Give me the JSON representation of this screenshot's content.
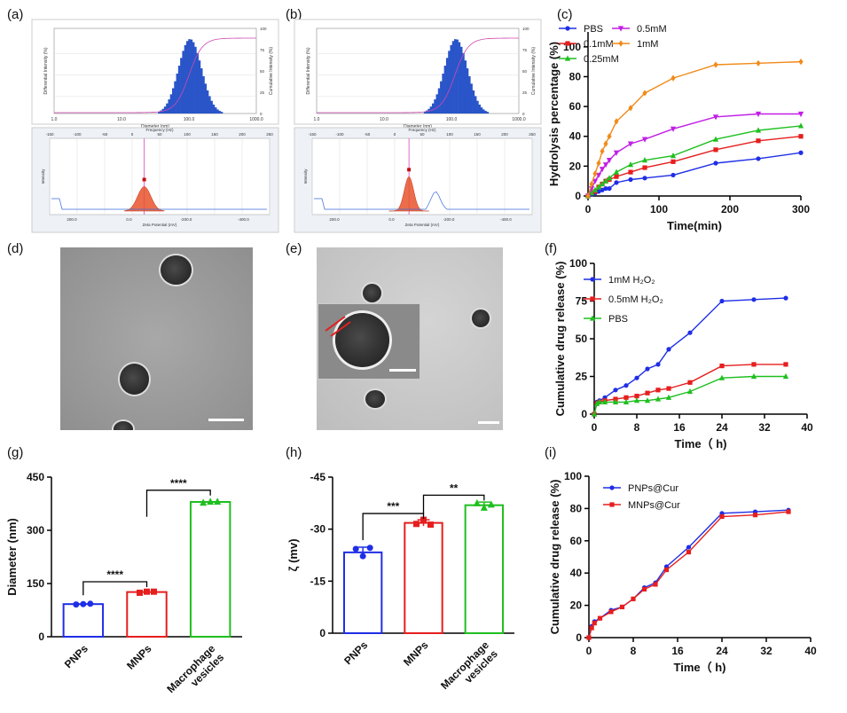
{
  "panel_labels": {
    "a": "(a)",
    "b": "(b)",
    "c": "(c)",
    "d": "(d)",
    "e": "(e)",
    "f": "(f)",
    "g": "(g)",
    "h": "(h)",
    "i": "(i)"
  },
  "dls": [
    {
      "x_title": "Diameter (nm)",
      "y_left": "Differential Intensity (%)",
      "y_right": "Cumulative Intensity (%)",
      "x_ticks": [
        "1.0",
        "10.0",
        "100.0",
        "1000.0"
      ],
      "right_ticks": [
        "100",
        "75",
        "50",
        "25",
        "0"
      ],
      "zeta_x_title": "Zeta Potential (mV)",
      "zeta_top_title": "Frequency (Hz)",
      "zeta_bottom_ticks": [
        "200.0",
        "0.0",
        "-200.0",
        "-400.0"
      ],
      "zeta_top_ticks": [
        "-150",
        "-100",
        "-50",
        "0",
        "50",
        "100",
        "150",
        "200",
        "250"
      ],
      "zeta_y_title": "Intensity"
    },
    {
      "x_title": "Diameter (nm)",
      "y_left": "Differential Intensity (%)",
      "y_right": "Cumulative Intensity (%)",
      "x_ticks": [
        "1.0",
        "10.0",
        "100.0",
        "1000.0"
      ],
      "right_ticks": [
        "100",
        "75",
        "50",
        "25",
        "0"
      ],
      "zeta_x_title": "Zeta Potential (mV)",
      "zeta_top_title": "Frequency (Hz)",
      "zeta_bottom_ticks": [
        "200.0",
        "0.0",
        "-200.0",
        "-400.0"
      ],
      "zeta_top_ticks": [
        "-150",
        "-100",
        "-50",
        "0",
        "50",
        "100",
        "150",
        "200",
        "250"
      ],
      "zeta_y_title": "Intensity"
    }
  ],
  "chart_data": [
    {
      "id": "c",
      "type": "line",
      "xlabel": "Time(min)",
      "ylabel": "Hydrolysis percentage (%)",
      "xlim": [
        0,
        300
      ],
      "ylim": [
        0,
        110
      ],
      "x_ticks": [
        0,
        100,
        200,
        300
      ],
      "y_ticks": [
        0,
        20,
        40,
        60,
        80,
        100
      ],
      "series": [
        {
          "name": "PBS",
          "color": "#1f2ee6",
          "marker": "circle",
          "x": [
            0,
            5,
            10,
            15,
            20,
            25,
            30,
            40,
            60,
            80,
            120,
            180,
            240,
            300
          ],
          "y": [
            0,
            1,
            2,
            3,
            4,
            5,
            5,
            9,
            11,
            12,
            14,
            22,
            25,
            29
          ]
        },
        {
          "name": "0.1mM",
          "color": "#e61e1e",
          "marker": "square",
          "x": [
            0,
            5,
            10,
            15,
            20,
            25,
            30,
            40,
            60,
            80,
            120,
            180,
            240,
            300
          ],
          "y": [
            0,
            2,
            3,
            6,
            8,
            10,
            11,
            13,
            16,
            19,
            23,
            31,
            37,
            40
          ]
        },
        {
          "name": "0.25mM",
          "color": "#1fbf1f",
          "marker": "triangle",
          "x": [
            0,
            5,
            10,
            15,
            20,
            25,
            30,
            40,
            60,
            80,
            120,
            180,
            240,
            300
          ],
          "y": [
            0,
            2,
            4,
            6,
            8,
            10,
            12,
            16,
            21,
            24,
            27,
            38,
            44,
            47
          ]
        },
        {
          "name": "0.5mM",
          "color": "#c21ee6",
          "marker": "tri-down",
          "x": [
            0,
            5,
            10,
            15,
            20,
            25,
            30,
            40,
            60,
            80,
            120,
            180,
            240,
            300
          ],
          "y": [
            0,
            5,
            10,
            14,
            18,
            21,
            24,
            29,
            35,
            38,
            45,
            53,
            55,
            55
          ]
        },
        {
          "name": "1mM",
          "color": "#f08a1a",
          "marker": "diamond",
          "x": [
            0,
            5,
            10,
            15,
            20,
            25,
            30,
            40,
            60,
            80,
            120,
            180,
            240,
            300
          ],
          "y": [
            0,
            8,
            15,
            22,
            30,
            35,
            40,
            50,
            59,
            69,
            79,
            88,
            89,
            90
          ]
        }
      ]
    },
    {
      "id": "f",
      "type": "line",
      "xlabel": "Time（ h)",
      "ylabel": "Cumulative drug release (%)",
      "xlim": [
        0,
        40
      ],
      "ylim": [
        0,
        100
      ],
      "x_ticks": [
        0,
        8,
        16,
        24,
        32,
        40
      ],
      "y_ticks": [
        0,
        25,
        50,
        75,
        100
      ],
      "series": [
        {
          "name": "1mM H₂O₂",
          "color": "#1f2ee6",
          "marker": "circle",
          "x": [
            0,
            0.5,
            1,
            2,
            4,
            6,
            8,
            10,
            12,
            14,
            18,
            24,
            30,
            36
          ],
          "y": [
            0,
            8,
            9,
            11,
            16,
            19,
            24,
            30,
            33,
            43,
            54,
            75,
            76,
            77
          ]
        },
        {
          "name": "0.5mM H₂O₂",
          "color": "#e61e1e",
          "marker": "square",
          "x": [
            0,
            0.5,
            1,
            2,
            4,
            6,
            8,
            10,
            12,
            14,
            18,
            24,
            30,
            36
          ],
          "y": [
            0,
            7,
            8,
            9,
            10,
            11,
            12,
            14,
            16,
            17,
            21,
            32,
            33,
            33
          ]
        },
        {
          "name": "PBS",
          "color": "#1fbf1f",
          "marker": "triangle",
          "x": [
            0,
            0.5,
            1,
            2,
            4,
            6,
            8,
            10,
            12,
            14,
            18,
            24,
            30,
            36
          ],
          "y": [
            0,
            7,
            8,
            8,
            8,
            8,
            9,
            9,
            10,
            11,
            15,
            24,
            25,
            25
          ]
        }
      ]
    },
    {
      "id": "g",
      "type": "bar",
      "ylabel": "Diameter (nm)",
      "categories": [
        "PNPs",
        "MNPs",
        "Macrophage vesicles"
      ],
      "values": [
        92,
        126,
        380
      ],
      "colors": [
        "#1f2ee6",
        "#e61e1e",
        "#1fbf1f"
      ],
      "ylim": [
        0,
        450
      ],
      "y_ticks": [
        0,
        150,
        300,
        450
      ],
      "points": [
        [
          91,
          92,
          93
        ],
        [
          124,
          127,
          127
        ],
        [
          378,
          381,
          381
        ]
      ],
      "significance": [
        {
          "from": 0,
          "to": 1,
          "label": "****",
          "y": 155
        },
        {
          "from": 1,
          "to": 2,
          "label": "****",
          "y": 413
        }
      ]
    },
    {
      "id": "h",
      "type": "bar",
      "ylabel": "ζ (mv)",
      "categories": [
        "PNPs",
        "MNPs",
        "Macrophage vesicles"
      ],
      "values": [
        -23.3,
        -31.8,
        -36.9
      ],
      "errors": [
        1.5,
        0.9,
        0.9
      ],
      "colors": [
        "#1f2ee6",
        "#e61e1e",
        "#1fbf1f"
      ],
      "ylim": [
        0,
        -45
      ],
      "y_ticks": [
        0,
        -15,
        -30,
        -45
      ],
      "y_tick_labels": [
        "0",
        "-15",
        "-30",
        "-45"
      ],
      "points": [
        [
          -24.3,
          -22.2,
          -24.6
        ],
        [
          -31.5,
          -32.7,
          -31.3
        ],
        [
          -37.5,
          -36.2,
          -37.1
        ]
      ],
      "significance": [
        {
          "from": 0,
          "to": 1,
          "label": "***",
          "y": -34.5
        },
        {
          "from": 1,
          "to": 2,
          "label": "**",
          "y": -39.8
        }
      ]
    },
    {
      "id": "i",
      "type": "line",
      "xlabel": "Time（ h)",
      "ylabel": "Cumulative drug release (%)",
      "xlim": [
        0,
        40
      ],
      "ylim": [
        0,
        100
      ],
      "x_ticks": [
        0,
        8,
        16,
        24,
        32,
        40
      ],
      "y_ticks": [
        0,
        20,
        40,
        60,
        80,
        100
      ],
      "series": [
        {
          "name": "PNPs@Cur",
          "color": "#1f2ee6",
          "marker": "circle",
          "x": [
            0,
            0.5,
            1,
            2,
            4,
            6,
            8,
            10,
            12,
            14,
            18,
            24,
            30,
            36
          ],
          "y": [
            0,
            7,
            10,
            12,
            17,
            19,
            24,
            31,
            34,
            44,
            56,
            77,
            78,
            79
          ]
        },
        {
          "name": "MNPs@Cur",
          "color": "#e61e1e",
          "marker": "square",
          "x": [
            0,
            0.5,
            1,
            2,
            4,
            6,
            8,
            10,
            12,
            14,
            18,
            24,
            30,
            36
          ],
          "y": [
            0,
            6,
            9,
            12,
            16,
            19,
            24,
            30,
            33,
            42,
            53,
            75,
            76,
            78
          ]
        }
      ]
    }
  ]
}
